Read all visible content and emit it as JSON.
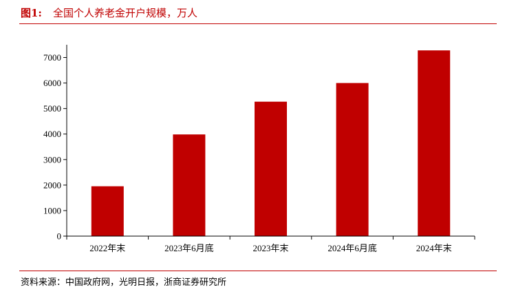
{
  "figure": {
    "label": "图1:",
    "title": "全国个人养老金开户规模，万人",
    "source": "资料来源：中国政府网，光明日报，浙商证券研究所"
  },
  "chart_data": {
    "type": "bar",
    "title": "全国个人养老金开户规模，万人",
    "categories": [
      "2022年末",
      "2023年6月底",
      "2023年末",
      "2024年6月底",
      "2024年末"
    ],
    "values": [
      1954,
      3985,
      5270,
      6000,
      7280
    ],
    "ylim": [
      0,
      7500
    ],
    "yticks": [
      0,
      1000,
      2000,
      3000,
      4000,
      5000,
      6000,
      7000
    ],
    "xlabel": "",
    "ylabel": "",
    "grid": false,
    "legend": "none",
    "colors": {
      "bar": "#c00000",
      "accent": "#c00000",
      "axis": "#000000"
    }
  }
}
